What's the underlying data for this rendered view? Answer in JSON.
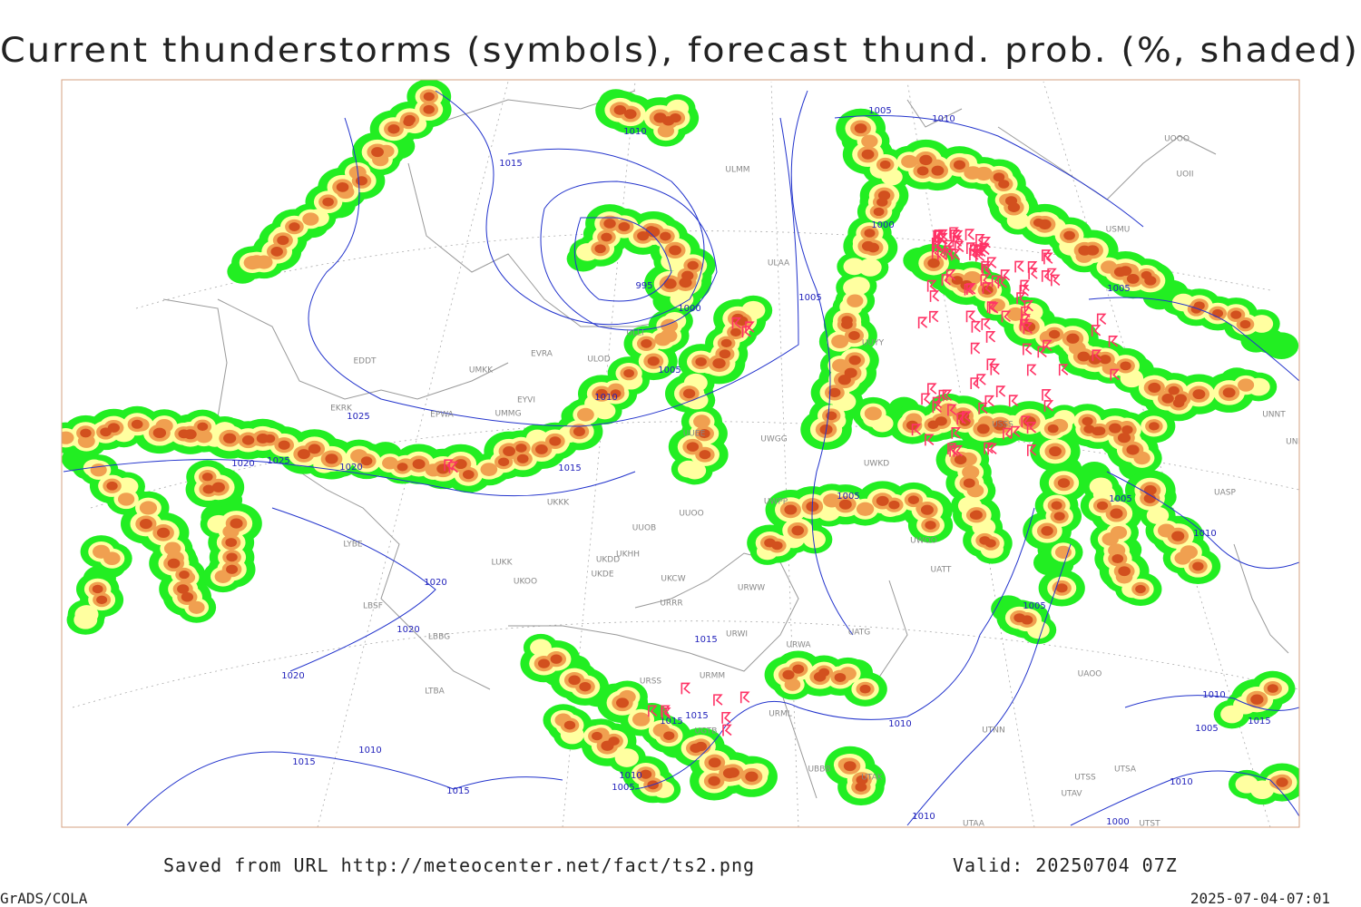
{
  "title": "Current thunderstorms (symbols), forecast thund. prob. (%, shaded)",
  "footer": {
    "source": "Saved from URL http://meteocenter.net/fact/ts2.png",
    "valid": "Valid: 20250704 07Z",
    "software": "GrADS/COLA",
    "timestamp": "2025-07-04-07:01"
  },
  "isobar_labels": [
    "1005",
    "1010",
    "1010",
    "1015",
    "1000",
    "995",
    "1000",
    "1005",
    "1005",
    "1010",
    "1025",
    "1020",
    "1025",
    "1020",
    "1015",
    "1005",
    "1005",
    "1005",
    "1010",
    "1020",
    "1020",
    "1020",
    "1005",
    "1015",
    "1015",
    "1015",
    "1010",
    "1010",
    "1015",
    "1010",
    "1005",
    "1015",
    "1010",
    "1000",
    "1010",
    "1005",
    "1015",
    "1010"
  ],
  "stations": [
    "ULMM",
    "ULAA",
    "ULLI",
    "EVRA",
    "ULOD",
    "UMKK",
    "EYVI",
    "EPWA",
    "UMMG",
    "EDDT",
    "EKRK",
    "UUEE",
    "UWGG",
    "UUOO",
    "UKKK",
    "UUOB",
    "UKHH",
    "UKDD",
    "UKDE",
    "UKCW",
    "URWW",
    "URRR",
    "URWI",
    "URWA",
    "UATG",
    "URSS",
    "URMM",
    "URML",
    "UGTB",
    "UBBB",
    "UTAK",
    "UTNN",
    "UAOO",
    "UTSA",
    "UTSS",
    "UTAV",
    "UTAA",
    "UTST",
    "UWPP",
    "LYBE",
    "LUKK",
    "UKOO",
    "LBSF",
    "LBBG",
    "LTBA",
    "UUYY",
    "UWKD",
    "UWOO",
    "UATT",
    "USSS",
    "UNNT",
    "UNBB",
    "USMU",
    "UOOO",
    "UOII",
    "UASP"
  ]
}
